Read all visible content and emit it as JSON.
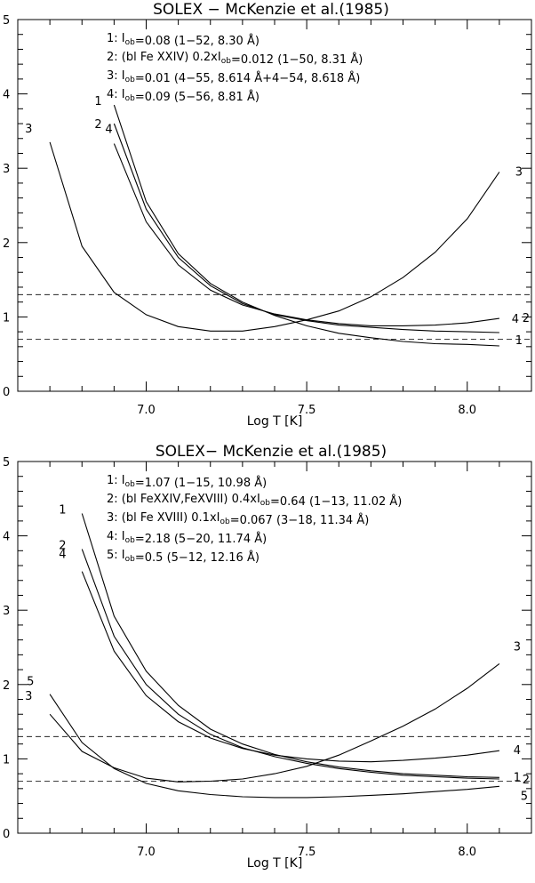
{
  "chart_data": [
    {
      "type": "line",
      "title": "SOLEX − McKenzie et al.(1985)",
      "xlabel": "Log T [K]",
      "ylabel": "",
      "xlim": [
        6.6,
        8.2
      ],
      "ylim": [
        0,
        5
      ],
      "x_ticks": [
        "7.0",
        "7.5",
        "8.0"
      ],
      "y_ticks": [
        "0",
        "1",
        "2",
        "3",
        "4",
        "5"
      ],
      "legend": [
        {
          "num": "1: ",
          "pre": "I",
          "sub": "ob",
          "post": "=0.08 (1−52, 8.30 Å)"
        },
        {
          "num": "2: ",
          "pre": "(bl Fe XXIV) 0.2xI",
          "sub": "ob",
          "post": "=0.012 (1−50, 8.31 Å)"
        },
        {
          "num": "3: ",
          "pre": "I",
          "sub": "ob",
          "post": "=0.01 (4−55, 8.614 Å+4−54, 8.618 Å)"
        },
        {
          "num": "4: ",
          "pre": "I",
          "sub": "ob",
          "post": "=0.09 (5−56, 8.81 Å)"
        }
      ],
      "ref_lines": [
        1.3,
        0.7
      ],
      "series": [
        {
          "label": "1",
          "x": [
            6.9,
            7.0,
            7.1,
            7.2,
            7.3,
            7.4,
            7.5,
            7.6,
            7.7,
            7.8,
            7.9,
            8.0,
            8.1
          ],
          "y": [
            3.85,
            2.55,
            1.85,
            1.45,
            1.2,
            1.02,
            0.88,
            0.78,
            0.72,
            0.67,
            0.64,
            0.63,
            0.61
          ],
          "start_label": "1",
          "end_label": "1"
        },
        {
          "label": "2",
          "x": [
            6.9,
            7.0,
            7.1,
            7.2,
            7.3,
            7.4,
            7.5,
            7.6,
            7.7,
            7.8,
            7.9,
            8.0,
            8.1
          ],
          "y": [
            3.6,
            2.45,
            1.8,
            1.42,
            1.18,
            1.03,
            0.95,
            0.89,
            0.86,
            0.83,
            0.81,
            0.8,
            0.79
          ],
          "start_label": "2",
          "end_label": "2"
        },
        {
          "label": "3",
          "x": [
            6.7,
            6.8,
            6.9,
            7.0,
            7.1,
            7.2,
            7.3,
            7.4,
            7.5,
            7.6,
            7.7,
            7.8,
            7.9,
            8.0,
            8.1
          ],
          "y": [
            3.35,
            1.95,
            1.33,
            1.03,
            0.87,
            0.81,
            0.81,
            0.87,
            0.96,
            1.08,
            1.27,
            1.53,
            1.87,
            2.32,
            2.95
          ],
          "start_label": "3",
          "end_label": "3"
        },
        {
          "label": "4",
          "x": [
            6.9,
            7.0,
            7.1,
            7.2,
            7.3,
            7.4,
            7.5,
            7.6,
            7.7,
            7.8,
            7.9,
            8.0,
            8.1
          ],
          "y": [
            3.33,
            2.28,
            1.7,
            1.36,
            1.16,
            1.04,
            0.96,
            0.91,
            0.88,
            0.88,
            0.89,
            0.92,
            0.98
          ],
          "start_label": "4",
          "end_label": "4"
        }
      ]
    },
    {
      "type": "line",
      "title": "SOLEX− McKenzie et al.(1985)",
      "xlabel": "Log T [K]",
      "ylabel": "",
      "xlim": [
        6.6,
        8.2
      ],
      "ylim": [
        0,
        5
      ],
      "x_ticks": [
        "7.0",
        "7.5",
        "8.0"
      ],
      "y_ticks": [
        "0",
        "1",
        "2",
        "3",
        "4",
        "5"
      ],
      "legend": [
        {
          "num": "1: ",
          "pre": "I",
          "sub": "ob",
          "post": "=1.07 (1−15, 10.98 Å)"
        },
        {
          "num": "2: ",
          "pre": "(bl FeXXIV,FeXVIII) 0.4xI",
          "sub": "ob",
          "post": "=0.64 (1−13, 11.02 Å)"
        },
        {
          "num": "3: ",
          "pre": "(bl Fe XVIII) 0.1xI",
          "sub": "ob",
          "post": "=0.067 (3−18, 11.34 Å)"
        },
        {
          "num": "4: ",
          "pre": "I",
          "sub": "ob",
          "post": "=2.18 (5−20, 11.74 Å)"
        },
        {
          "num": "5: ",
          "pre": "I",
          "sub": "ob",
          "post": "=0.5 (5−12, 12.16 Å)"
        }
      ],
      "ref_lines": [
        1.3,
        0.7
      ],
      "series": [
        {
          "label": "1",
          "x": [
            6.8,
            6.9,
            7.0,
            7.1,
            7.2,
            7.3,
            7.4,
            7.5,
            7.6,
            7.7,
            7.8,
            7.9,
            8.0,
            8.1
          ],
          "y": [
            4.3,
            2.92,
            2.18,
            1.72,
            1.4,
            1.2,
            1.06,
            0.96,
            0.89,
            0.84,
            0.8,
            0.78,
            0.76,
            0.75
          ],
          "start_label": "1",
          "end_label": "1"
        },
        {
          "label": "2",
          "x": [
            6.8,
            6.9,
            7.0,
            7.1,
            7.2,
            7.3,
            7.4,
            7.5,
            7.6,
            7.7,
            7.8,
            7.9,
            8.0,
            8.1
          ],
          "y": [
            3.82,
            2.65,
            2.0,
            1.6,
            1.33,
            1.15,
            1.03,
            0.94,
            0.87,
            0.82,
            0.78,
            0.76,
            0.74,
            0.73
          ],
          "start_label": "2",
          "end_label": "2"
        },
        {
          "label": "3",
          "x": [
            6.7,
            6.8,
            6.9,
            7.0,
            7.1,
            7.2,
            7.3,
            7.4,
            7.5,
            7.6,
            7.7,
            7.8,
            7.9,
            8.0,
            8.1
          ],
          "y": [
            1.6,
            1.1,
            0.88,
            0.74,
            0.69,
            0.7,
            0.73,
            0.8,
            0.9,
            1.05,
            1.24,
            1.44,
            1.67,
            1.95,
            2.28
          ],
          "start_label": "3",
          "end_label": "3"
        },
        {
          "label": "4",
          "x": [
            6.8,
            6.9,
            7.0,
            7.1,
            7.2,
            7.3,
            7.4,
            7.5,
            7.6,
            7.7,
            7.8,
            7.9,
            8.0,
            8.1
          ],
          "y": [
            3.52,
            2.45,
            1.85,
            1.5,
            1.28,
            1.14,
            1.05,
            1.0,
            0.97,
            0.96,
            0.98,
            1.01,
            1.05,
            1.11
          ],
          "start_label": "4",
          "end_label": "4"
        },
        {
          "label": "5",
          "x": [
            6.7,
            6.8,
            6.9,
            7.0,
            7.1,
            7.2,
            7.3,
            7.4,
            7.5,
            7.6,
            7.7,
            7.8,
            7.9,
            8.0,
            8.1
          ],
          "y": [
            1.87,
            1.22,
            0.87,
            0.67,
            0.57,
            0.52,
            0.49,
            0.48,
            0.48,
            0.49,
            0.51,
            0.53,
            0.56,
            0.59,
            0.63
          ],
          "start_label": "5",
          "end_label": "5"
        }
      ]
    }
  ]
}
